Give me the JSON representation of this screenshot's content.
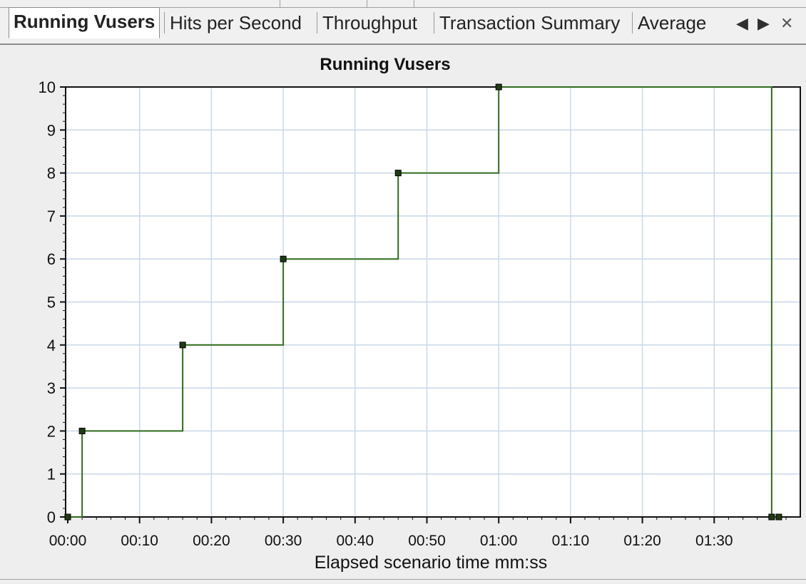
{
  "tabs": [
    {
      "label": "Running Vusers",
      "active": true
    },
    {
      "label": "Hits per Second",
      "active": false
    },
    {
      "label": "Throughput",
      "active": false
    },
    {
      "label": "Transaction Summary",
      "active": false
    },
    {
      "label": "Average",
      "active": false
    }
  ],
  "nav": {
    "prev_icon": "◀",
    "next_icon": "▶",
    "close_icon": "✕"
  },
  "colors": {
    "series": "#2f6b1c",
    "marker": "#1f3a14",
    "grid": "#c8d8ea",
    "plot_bg": "#ffffff"
  },
  "chart_data": {
    "type": "line",
    "title": "Running Vusers",
    "xlabel": "Elapsed scenario time mm:ss",
    "ylabel": "",
    "step": true,
    "grid": true,
    "xlim": [
      0,
      100
    ],
    "ylim": [
      0,
      10
    ],
    "x_ticks": [
      {
        "v": 0,
        "label": "00:00"
      },
      {
        "v": 10,
        "label": "00:10"
      },
      {
        "v": 20,
        "label": "00:20"
      },
      {
        "v": 30,
        "label": "00:30"
      },
      {
        "v": 40,
        "label": "00:40"
      },
      {
        "v": 50,
        "label": "00:50"
      },
      {
        "v": 60,
        "label": "01:00"
      },
      {
        "v": 70,
        "label": "01:10"
      },
      {
        "v": 80,
        "label": "01:20"
      },
      {
        "v": 90,
        "label": "01:30"
      }
    ],
    "y_ticks": [
      0,
      1,
      2,
      3,
      4,
      5,
      6,
      7,
      8,
      9,
      10
    ],
    "series": [
      {
        "points": [
          {
            "x": 0,
            "y": 0
          },
          {
            "x": 2,
            "y": 2
          },
          {
            "x": 16,
            "y": 4
          },
          {
            "x": 30,
            "y": 6
          },
          {
            "x": 46,
            "y": 8
          },
          {
            "x": 60,
            "y": 10
          },
          {
            "x": 98,
            "y": 0
          },
          {
            "x": 99,
            "y": 0
          }
        ]
      }
    ]
  }
}
